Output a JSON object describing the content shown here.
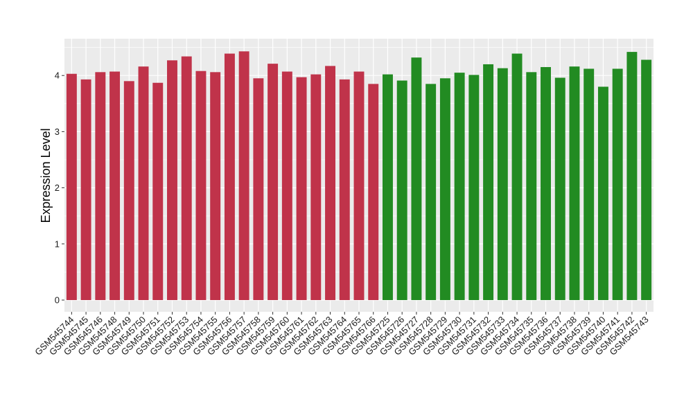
{
  "chart_data": {
    "type": "bar",
    "title": "",
    "xlabel": "",
    "ylabel": "Expression Level",
    "ylim": [
      0,
      4.6
    ],
    "yticks": [
      0,
      1,
      2,
      3,
      4
    ],
    "grid": true,
    "colors": {
      "group_a": "#C0334A",
      "group_b": "#228B22",
      "panel_bg": "#EBEBEB",
      "grid": "#FFFFFF"
    },
    "categories": [
      "GSM545744",
      "GSM545745",
      "GSM545746",
      "GSM545748",
      "GSM545749",
      "GSM545750",
      "GSM545751",
      "GSM545752",
      "GSM545753",
      "GSM545754",
      "GSM545755",
      "GSM545756",
      "GSM545757",
      "GSM545758",
      "GSM545759",
      "GSM545760",
      "GSM545761",
      "GSM545762",
      "GSM545763",
      "GSM545764",
      "GSM545765",
      "GSM545766",
      "GSM545725",
      "GSM545726",
      "GSM545727",
      "GSM545728",
      "GSM545729",
      "GSM545730",
      "GSM545731",
      "GSM545732",
      "GSM545733",
      "GSM545734",
      "GSM545735",
      "GSM545736",
      "GSM545737",
      "GSM545738",
      "GSM545739",
      "GSM545740",
      "GSM545741",
      "GSM545742",
      "GSM545743"
    ],
    "values": [
      4.03,
      3.93,
      4.06,
      4.07,
      3.9,
      4.16,
      3.87,
      4.27,
      4.34,
      4.08,
      4.06,
      4.39,
      4.43,
      3.95,
      4.21,
      4.07,
      3.97,
      4.02,
      4.17,
      3.93,
      4.07,
      3.85,
      4.02,
      3.91,
      4.32,
      3.85,
      3.95,
      4.05,
      4.01,
      4.2,
      4.13,
      4.39,
      4.06,
      4.15,
      3.96,
      4.16,
      4.12,
      3.8,
      4.12,
      4.42,
      4.28
    ],
    "groups": [
      "a",
      "a",
      "a",
      "a",
      "a",
      "a",
      "a",
      "a",
      "a",
      "a",
      "a",
      "a",
      "a",
      "a",
      "a",
      "a",
      "a",
      "a",
      "a",
      "a",
      "a",
      "a",
      "b",
      "b",
      "b",
      "b",
      "b",
      "b",
      "b",
      "b",
      "b",
      "b",
      "b",
      "b",
      "b",
      "b",
      "b",
      "b",
      "b",
      "b",
      "b"
    ]
  }
}
